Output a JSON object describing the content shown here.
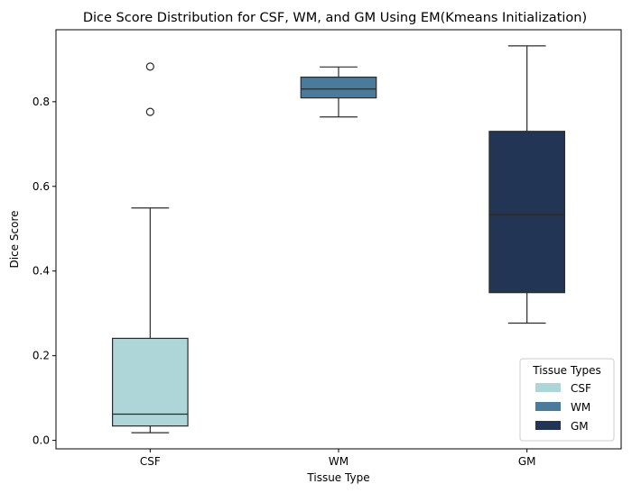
{
  "chart_data": {
    "type": "box",
    "title": "Dice Score Distribution for CSF, WM, and GM Using EM(Kmeans Initialization)",
    "xlabel": "Tissue Type",
    "ylabel": "Dice Score",
    "categories": [
      "CSF",
      "WM",
      "GM"
    ],
    "ylim": [
      -0.02,
      0.97
    ],
    "yticks": [
      0.0,
      0.2,
      0.4,
      0.6,
      0.8
    ],
    "ytick_labels": [
      "0.0",
      "0.2",
      "0.4",
      "0.6",
      "0.8"
    ],
    "grid": false,
    "series": [
      {
        "category": "CSF",
        "whisker_low": 0.018,
        "q1": 0.034,
        "median": 0.062,
        "q3": 0.241,
        "whisker_high": 0.549,
        "outliers": [
          0.776,
          0.883
        ],
        "color": "#aed6d8"
      },
      {
        "category": "WM",
        "whisker_low": 0.764,
        "q1": 0.809,
        "median": 0.83,
        "q3": 0.858,
        "whisker_high": 0.882,
        "outliers": [],
        "color": "#4a7b9d"
      },
      {
        "category": "GM",
        "whisker_low": 0.277,
        "q1": 0.349,
        "median": 0.533,
        "q3": 0.73,
        "whisker_high": 0.932,
        "outliers": [],
        "color": "#223554"
      }
    ],
    "legend": {
      "title": "Tissue Types",
      "placement": "lower-right",
      "entries": [
        {
          "label": "CSF",
          "color": "#aed6d8"
        },
        {
          "label": "WM",
          "color": "#4a7b9d"
        },
        {
          "label": "GM",
          "color": "#223554"
        }
      ]
    }
  }
}
